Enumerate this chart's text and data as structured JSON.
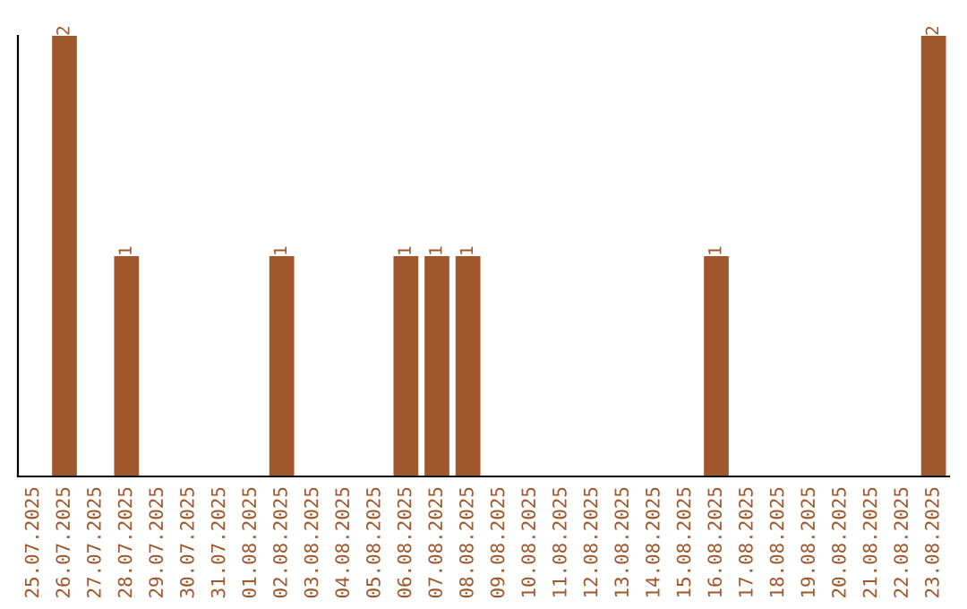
{
  "chart_data": {
    "type": "bar",
    "categories": [
      "25.07.2025",
      "26.07.2025",
      "27.07.2025",
      "28.07.2025",
      "29.07.2025",
      "30.07.2025",
      "31.07.2025",
      "01.08.2025",
      "02.08.2025",
      "03.08.2025",
      "04.08.2025",
      "05.08.2025",
      "06.08.2025",
      "07.08.2025",
      "08.08.2025",
      "09.08.2025",
      "10.08.2025",
      "11.08.2025",
      "12.08.2025",
      "13.08.2025",
      "14.08.2025",
      "15.08.2025",
      "16.08.2025",
      "17.08.2025",
      "18.08.2025",
      "19.08.2025",
      "20.08.2025",
      "21.08.2025",
      "22.08.2025",
      "23.08.2025"
    ],
    "values": [
      0,
      2,
      0,
      1,
      0,
      0,
      0,
      0,
      1,
      0,
      0,
      0,
      1,
      1,
      1,
      0,
      0,
      0,
      0,
      0,
      0,
      0,
      1,
      0,
      0,
      0,
      0,
      0,
      0,
      2
    ],
    "value_labels": [
      null,
      "2",
      null,
      "1",
      null,
      null,
      null,
      null,
      "1",
      null,
      null,
      null,
      "1",
      "1",
      "1",
      null,
      null,
      null,
      null,
      null,
      null,
      null,
      "1",
      null,
      null,
      null,
      null,
      null,
      null,
      "2"
    ],
    "color": "#a0572b",
    "grid": false,
    "legend": false,
    "tick_labels": "x"
  }
}
